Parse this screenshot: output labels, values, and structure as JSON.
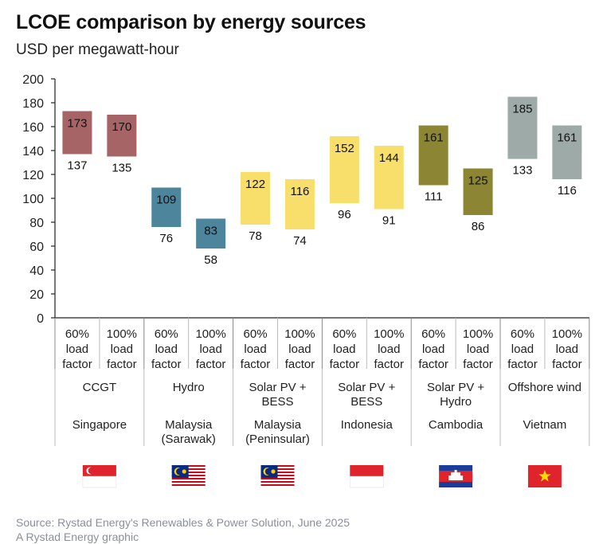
{
  "title": "LCOE comparison by energy sources",
  "subtitle": "USD per megawatt-hour",
  "footer": {
    "source": "Source: Rystad Energy's Renewables & Power Solution, June 2025",
    "credit": "A Rystad Energy graphic"
  },
  "chart_data": {
    "type": "bar",
    "subtype": "floating-range",
    "ylim": [
      0,
      200
    ],
    "yticks": [
      0,
      20,
      40,
      60,
      80,
      100,
      120,
      140,
      160,
      180,
      200
    ],
    "grid": false,
    "legend": "none",
    "groups": [
      {
        "source": "CCGT",
        "country": "Singapore",
        "color": "#a66467",
        "flag": "singapore-flag",
        "bars": [
          {
            "category": "60% load factor",
            "low": 137,
            "high": 173
          },
          {
            "category": "100% load factor",
            "low": 135,
            "high": 170
          }
        ]
      },
      {
        "source": "Hydro",
        "country": "Malaysia (Sarawak)",
        "color": "#4d859d",
        "flag": "malaysia-flag",
        "bars": [
          {
            "category": "60% load factor",
            "low": 76,
            "high": 109
          },
          {
            "category": "100% load factor",
            "low": 58,
            "high": 83
          }
        ]
      },
      {
        "source": "Solar PV + BESS",
        "country": "Malaysia (Peninsular)",
        "color": "#f8de6a",
        "flag": "malaysia-flag",
        "bars": [
          {
            "category": "60% load factor",
            "low": 78,
            "high": 122
          },
          {
            "category": "100% load factor",
            "low": 74,
            "high": 116
          }
        ]
      },
      {
        "source": "Solar PV + BESS",
        "country": "Indonesia",
        "color": "#f8de6a",
        "flag": "indonesia-flag",
        "bars": [
          {
            "category": "60% load factor",
            "low": 96,
            "high": 152
          },
          {
            "category": "100% load factor",
            "low": 91,
            "high": 144
          }
        ]
      },
      {
        "source": "Solar PV + Hydro",
        "country": "Cambodia",
        "color": "#8b8534",
        "flag": "cambodia-flag",
        "bars": [
          {
            "category": "60% load factor",
            "low": 111,
            "high": 161
          },
          {
            "category": "100% load factor",
            "low": 86,
            "high": 125
          }
        ]
      },
      {
        "source": "Offshore wind",
        "country": "Vietnam",
        "color": "#9eaaa8",
        "flag": "vietnam-flag",
        "bars": [
          {
            "category": "60% load factor",
            "low": 133,
            "high": 185
          },
          {
            "category": "100% load factor",
            "low": 116,
            "high": 161
          }
        ]
      }
    ]
  }
}
